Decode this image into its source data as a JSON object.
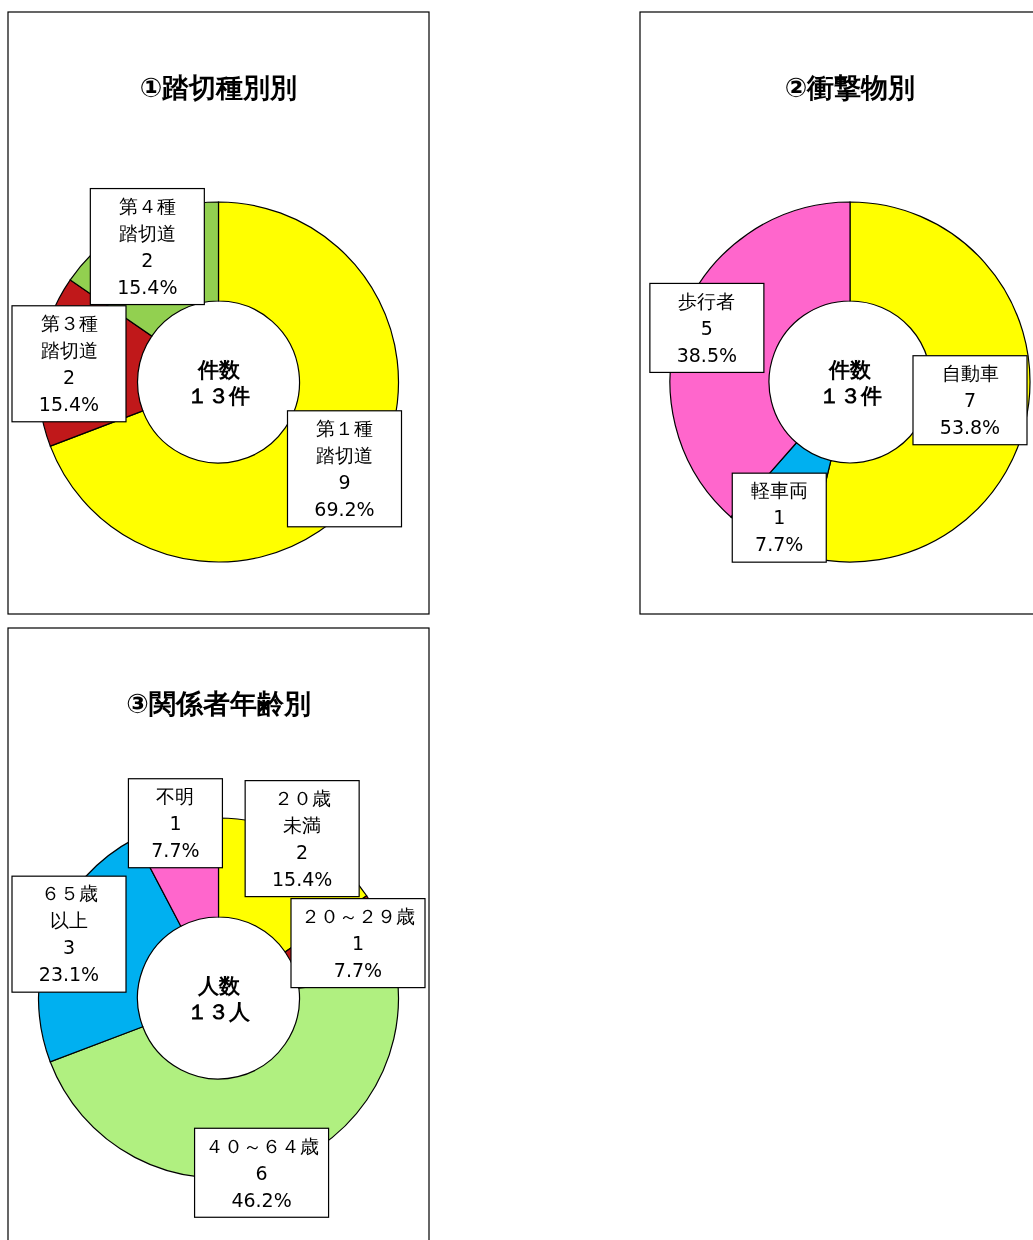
{
  "chart_data": [
    {
      "type": "donut",
      "title": "①踏切種別別",
      "categories": [
        "第１種踏切道",
        "第３種踏切道",
        "第４種踏切道"
      ],
      "values": [
        69.2,
        15.4,
        15.4
      ],
      "value_labels": [
        "9\n69.2%",
        "2\n15.4%",
        "2\n15.4%"
      ],
      "colors": [
        "#ffff00",
        "#c0181a",
        "#92d050"
      ],
      "annotations": [
        "件数１３件"
      ]
    },
    {
      "type": "donut",
      "title": "②衝撃物別",
      "categories": [
        "自動車",
        "軽車両",
        "歩行者"
      ],
      "values": [
        53.8,
        7.7,
        38.5
      ],
      "value_labels": [
        "7\n53.8%",
        "1\n7.7%",
        "5\n38.5%"
      ],
      "colors": [
        "#ffff00",
        "#00b0f0",
        "#ff66cc"
      ],
      "annotations": [
        "件数１３件"
      ]
    },
    {
      "type": "donut",
      "title": "③関係者年齢別",
      "categories": [
        "２０歳未満",
        "２０～２９歳",
        "４０～６４歳",
        "６５歳以上",
        "不明"
      ],
      "values": [
        15.4,
        7.7,
        46.2,
        23.1,
        7.7
      ],
      "value_labels": [
        "2\n15.4%",
        "1\n7.7%",
        "6\n46.2%",
        "3\n23.1%",
        "1\n7.7%"
      ],
      "colors": [
        "#ffff00",
        "#c0181a",
        "#b0f080",
        "#00b0f0",
        "#ff66cc"
      ],
      "annotations": [
        "人数１３人"
      ]
    }
  ]
}
